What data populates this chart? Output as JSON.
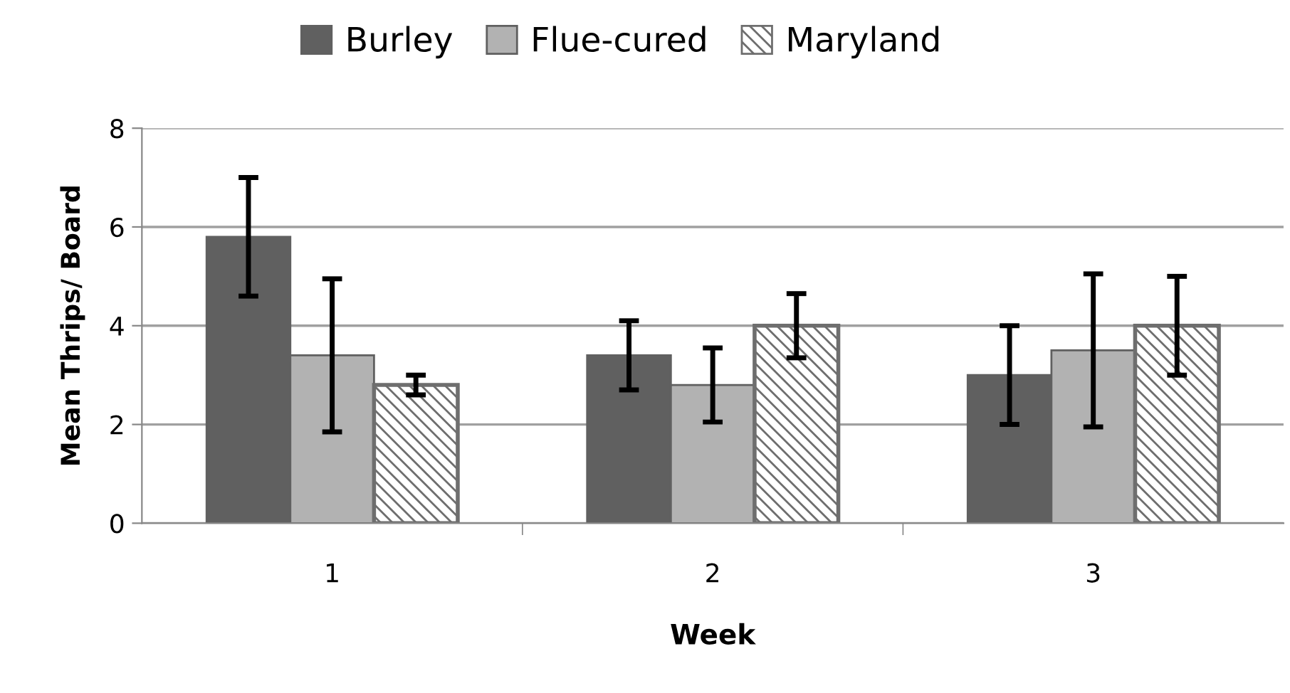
{
  "chart_data": {
    "type": "bar",
    "xlabel": "Week",
    "ylabel": "Mean Thrips/ Board",
    "categories": [
      "1",
      "2",
      "3"
    ],
    "series": [
      {
        "name": "Burley",
        "color": "#606060",
        "values": [
          5.8,
          3.4,
          3.0
        ],
        "errors": [
          1.2,
          0.7,
          1.0
        ]
      },
      {
        "name": "Flue-cured",
        "color": "#b2b2b2",
        "values": [
          3.4,
          2.8,
          3.5
        ],
        "errors": [
          1.55,
          0.75,
          1.55
        ]
      },
      {
        "name": "Maryland",
        "color": "#6e6e6e",
        "values": [
          2.8,
          4.0,
          4.0
        ],
        "errors": [
          0.2,
          0.65,
          1.0
        ]
      }
    ],
    "ylim": [
      0,
      8
    ],
    "yticks": [
      0,
      2,
      4,
      6,
      8
    ],
    "grid": "y",
    "legend": "top"
  }
}
